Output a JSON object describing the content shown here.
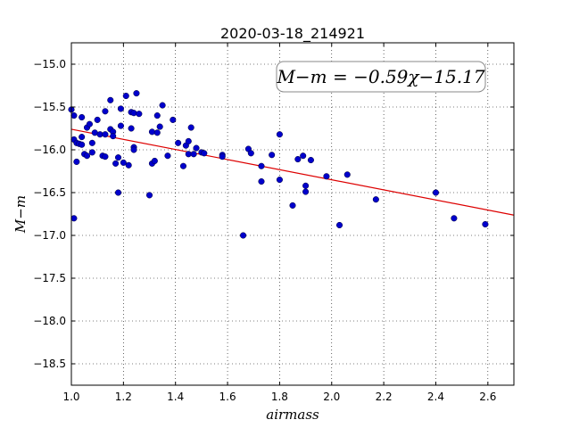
{
  "chart_data": {
    "type": "scatter",
    "title": "2020-03-18_214921",
    "xlabel": "airmass",
    "ylabel": "M−m",
    "xlim": [
      1.0,
      2.7
    ],
    "ylim": [
      -18.75,
      -14.75
    ],
    "x_ticks": [
      1.0,
      1.2,
      1.4,
      1.6,
      1.8,
      2.0,
      2.2,
      2.4,
      2.6
    ],
    "x_tick_labels": [
      "1.0",
      "1.2",
      "1.4",
      "1.6",
      "1.8",
      "2.0",
      "2.2",
      "2.4",
      "2.6"
    ],
    "y_ticks": [
      -15.0,
      -15.5,
      -16.0,
      -16.5,
      -17.0,
      -17.5,
      -18.0,
      -18.5
    ],
    "y_tick_labels": [
      "−15.0",
      "−15.5",
      "−16.0",
      "−16.5",
      "−17.0",
      "−17.5",
      "−18.0",
      "−18.5"
    ],
    "grid": true,
    "annotation": "M−m = −0.59χ−15.17",
    "series": [
      {
        "kind": "points",
        "color": "#0000cc",
        "points": [
          [
            1.0,
            -15.53
          ],
          [
            1.01,
            -15.6
          ],
          [
            1.01,
            -15.88
          ],
          [
            1.01,
            -16.8
          ],
          [
            1.02,
            -15.92
          ],
          [
            1.02,
            -16.14
          ],
          [
            1.03,
            -15.93
          ],
          [
            1.04,
            -15.62
          ],
          [
            1.04,
            -15.85
          ],
          [
            1.04,
            -15.94
          ],
          [
            1.05,
            -16.05
          ],
          [
            1.06,
            -16.07
          ],
          [
            1.06,
            -15.74
          ],
          [
            1.07,
            -15.7
          ],
          [
            1.08,
            -16.03
          ],
          [
            1.08,
            -15.92
          ],
          [
            1.09,
            -15.8
          ],
          [
            1.1,
            -15.65
          ],
          [
            1.11,
            -15.82
          ],
          [
            1.12,
            -16.07
          ],
          [
            1.13,
            -16.08
          ],
          [
            1.13,
            -15.55
          ],
          [
            1.13,
            -15.82
          ],
          [
            1.15,
            -15.76
          ],
          [
            1.15,
            -15.42
          ],
          [
            1.16,
            -15.79
          ],
          [
            1.16,
            -15.84
          ],
          [
            1.17,
            -16.16
          ],
          [
            1.18,
            -16.09
          ],
          [
            1.18,
            -16.5
          ],
          [
            1.19,
            -15.52
          ],
          [
            1.19,
            -15.72
          ],
          [
            1.2,
            -16.15
          ],
          [
            1.21,
            -15.37
          ],
          [
            1.22,
            -16.18
          ],
          [
            1.23,
            -15.56
          ],
          [
            1.23,
            -15.75
          ],
          [
            1.24,
            -15.57
          ],
          [
            1.24,
            -15.97
          ],
          [
            1.24,
            -16.0
          ],
          [
            1.25,
            -15.34
          ],
          [
            1.26,
            -15.58
          ],
          [
            1.3,
            -16.53
          ],
          [
            1.31,
            -15.79
          ],
          [
            1.31,
            -16.16
          ],
          [
            1.32,
            -16.13
          ],
          [
            1.33,
            -15.6
          ],
          [
            1.33,
            -15.8
          ],
          [
            1.34,
            -15.73
          ],
          [
            1.35,
            -15.48
          ],
          [
            1.37,
            -16.07
          ],
          [
            1.39,
            -15.65
          ],
          [
            1.41,
            -15.92
          ],
          [
            1.43,
            -16.19
          ],
          [
            1.44,
            -15.95
          ],
          [
            1.45,
            -15.9
          ],
          [
            1.45,
            -16.05
          ],
          [
            1.46,
            -15.74
          ],
          [
            1.47,
            -16.05
          ],
          [
            1.48,
            -15.98
          ],
          [
            1.5,
            -16.03
          ],
          [
            1.51,
            -16.04
          ],
          [
            1.58,
            -16.06
          ],
          [
            1.58,
            -16.08
          ],
          [
            1.66,
            -17.0
          ],
          [
            1.68,
            -15.99
          ],
          [
            1.69,
            -16.04
          ],
          [
            1.73,
            -16.19
          ],
          [
            1.73,
            -16.37
          ],
          [
            1.77,
            -16.06
          ],
          [
            1.8,
            -16.35
          ],
          [
            1.8,
            -15.82
          ],
          [
            1.85,
            -16.65
          ],
          [
            1.87,
            -16.11
          ],
          [
            1.89,
            -16.07
          ],
          [
            1.9,
            -16.42
          ],
          [
            1.9,
            -16.49
          ],
          [
            1.92,
            -16.12
          ],
          [
            1.98,
            -16.31
          ],
          [
            2.03,
            -16.88
          ],
          [
            2.06,
            -16.29
          ],
          [
            2.17,
            -16.58
          ],
          [
            2.4,
            -16.5
          ],
          [
            2.47,
            -16.8
          ],
          [
            2.59,
            -16.87
          ]
        ]
      },
      {
        "kind": "fit-line",
        "color": "#dd0000",
        "x": [
          1.0,
          2.7
        ],
        "y": [
          -15.76,
          -16.763
        ]
      }
    ]
  }
}
